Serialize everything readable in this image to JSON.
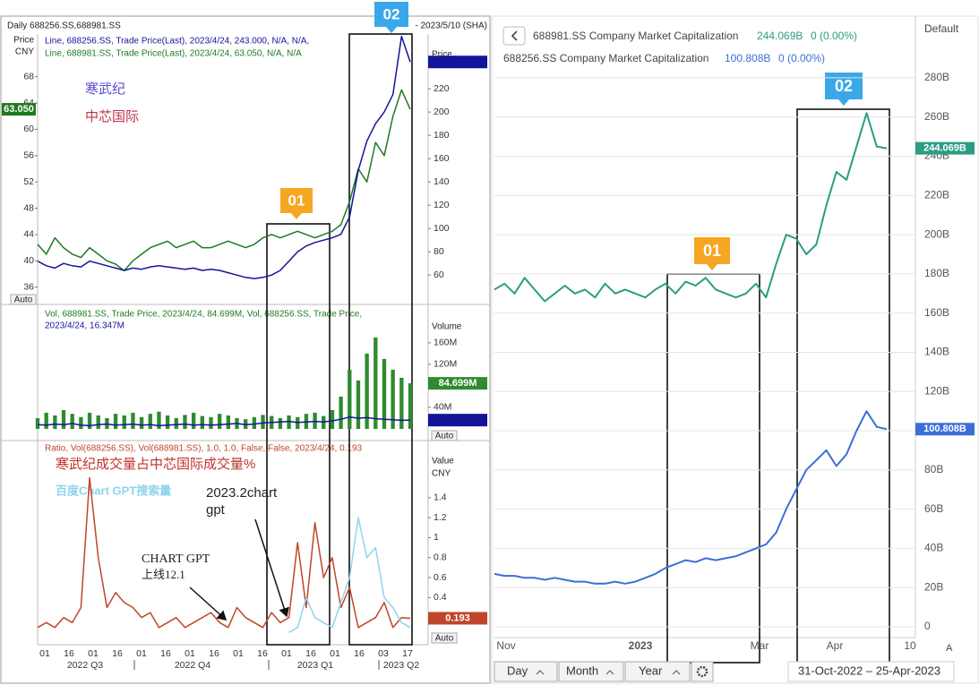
{
  "chart_data": [
    {
      "type": "line",
      "title": "Daily 688256.SS,688981.SS",
      "subtitle": "- 2023/5/10 (SHA)",
      "ylabel": [
        "Price",
        "CNY"
      ],
      "y2label": "Price",
      "yaxis_side": "left",
      "auto_button": "Auto",
      "info": [
        "Line, 688256.SS, Trade Price(Last), 2023/4/24, 243.000, N/A, N/A,",
        "Line, 688981.SS, Trade Price(Last), 2023/4/24, 63.050, N/A, N/A"
      ],
      "badges": [
        "01",
        "02"
      ],
      "ylim": [
        35,
        74.5
      ],
      "yticks": [
        36,
        40,
        44,
        48,
        52,
        56,
        60,
        64,
        68
      ],
      "y2lim": [
        44,
        267
      ],
      "y2ticks": [
        60,
        80,
        100,
        120,
        140,
        160,
        180,
        200,
        220
      ],
      "series": [
        {
          "name": "中芯国际",
          "color": "#1f7a1f",
          "axis": "y",
          "tag": {
            "value": 63.05,
            "label": "63.050"
          },
          "values": [
            42.5,
            41,
            43.5,
            42,
            41,
            40.5,
            42,
            41,
            40,
            39.5,
            38.5,
            40,
            41,
            42,
            42.5,
            43,
            42,
            42.5,
            43,
            42,
            42,
            42.5,
            43,
            42.5,
            42,
            42.5,
            43.5,
            44,
            43.5,
            44,
            44.5,
            44,
            43.5,
            44,
            44.5,
            45.5,
            49,
            54,
            52,
            58,
            56,
            62,
            66,
            63.05
          ]
        },
        {
          "name": "寒武纪",
          "color": "#14149a",
          "axis": "y2",
          "tag": {
            "value": 243
          },
          "values": [
            72,
            68,
            66,
            70,
            68,
            67,
            72,
            70,
            68,
            66,
            64,
            66,
            65,
            67,
            68,
            67,
            66,
            65,
            66,
            64,
            65,
            64,
            62,
            60,
            58,
            57,
            58,
            60,
            64,
            72,
            80,
            85,
            88,
            90,
            92,
            95,
            110,
            150,
            175,
            190,
            200,
            215,
            265,
            243
          ]
        }
      ]
    },
    {
      "type": "bar",
      "ylabel": "Volume",
      "auto_button": "Auto",
      "info": [
        "Vol, 688981.SS, Trade Price, 2023/4/24, 84.699M, Vol, 688256.SS, Trade Price,",
        "2023/4/24, 16.347M"
      ],
      "ylim": [
        0,
        223
      ],
      "yticks": [
        {
          "value": 40,
          "label": "40M"
        },
        {
          "value": 80,
          "label": "80M"
        },
        {
          "value": 120,
          "label": "120M"
        },
        {
          "value": 160,
          "label": "160M"
        }
      ],
      "series": [
        {
          "color": "#2e8b2e",
          "style": "bar",
          "tag": {
            "value": 84.699,
            "label": "84.699M"
          },
          "values": [
            20,
            30,
            25,
            35,
            28,
            22,
            30,
            25,
            20,
            28,
            25,
            30,
            22,
            28,
            32,
            25,
            20,
            26,
            30,
            24,
            22,
            28,
            25,
            20,
            18,
            22,
            26,
            24,
            20,
            25,
            22,
            28,
            30,
            24,
            35,
            60,
            110,
            90,
            140,
            170,
            130,
            110,
            95,
            84.699
          ]
        },
        {
          "color": "#14149a",
          "style": "line",
          "tag": {
            "value": 16.347
          },
          "values": [
            8,
            7,
            9,
            8,
            10,
            7,
            6,
            8,
            9,
            7,
            8,
            9,
            7,
            8,
            6,
            7,
            8,
            9,
            7,
            8,
            7,
            8,
            9,
            10,
            8,
            9,
            11,
            12,
            13,
            14,
            12,
            13,
            14,
            13,
            15,
            18,
            22,
            20,
            21,
            19,
            18,
            17,
            16,
            16.347
          ]
        }
      ]
    },
    {
      "type": "line",
      "ylabel": [
        "Value",
        "CNY"
      ],
      "auto_button": "Auto",
      "info": [
        "Ratio, Vol(688256.SS), Vol(688981.SS), 1.0, 1.0, False, False, 2023/4/24, 0.193"
      ],
      "annotations": [
        "2023.2chart",
        "gpt",
        "CHART GPT",
        "上线12.1"
      ],
      "xtick_labels": [
        "01",
        "16",
        "01",
        "16",
        "01",
        "16",
        "01",
        "16",
        "01",
        "16",
        "01",
        "16",
        "01",
        "16",
        "03",
        "17"
      ],
      "period_labels": [
        "2022 Q3",
        "2022 Q4",
        "2023 Q1",
        "2023 Q2"
      ],
      "ylim": [
        0,
        1.9
      ],
      "yticks": [
        0.2,
        0.4,
        0.6,
        0.8,
        1,
        1.2,
        1.4
      ],
      "series": [
        {
          "name": "寒武纪成交量占中芯国际成交量%",
          "color": "#c0452a",
          "tag": {
            "value": 0.193,
            "label": "0.193"
          },
          "values": [
            0.1,
            0.15,
            0.1,
            0.2,
            0.15,
            0.3,
            1.6,
            0.8,
            0.3,
            0.45,
            0.35,
            0.3,
            0.2,
            0.25,
            0.1,
            0.15,
            0.2,
            0.1,
            0.15,
            0.2,
            0.25,
            0.15,
            0.1,
            0.3,
            0.2,
            0.15,
            0.1,
            0.25,
            0.15,
            0.2,
            0.95,
            0.3,
            1.15,
            0.6,
            0.8,
            0.3,
            0.5,
            0.1,
            0.15,
            0.2,
            0.35,
            0.1,
            0.2,
            0.193
          ]
        },
        {
          "name": "百度Chart GPT搜索量",
          "color": "#8fd3ec",
          "values": [
            null,
            null,
            null,
            null,
            null,
            null,
            null,
            null,
            null,
            null,
            null,
            null,
            null,
            null,
            null,
            null,
            null,
            null,
            null,
            null,
            null,
            null,
            null,
            null,
            null,
            null,
            null,
            null,
            null,
            0.05,
            0.1,
            0.4,
            0.2,
            0.15,
            0.1,
            0.35,
            0.6,
            1.2,
            0.8,
            0.9,
            0.4,
            0.3,
            0.15,
            0.1
          ]
        }
      ]
    },
    {
      "type": "line",
      "menu": "Default",
      "grid": true,
      "badges": [
        "01",
        "02"
      ],
      "xtick_labels": [
        "Nov",
        "2023",
        "Mar",
        "Apr",
        "10"
      ],
      "corner_button": "A",
      "range_buttons": [
        "Day",
        "Month",
        "Year"
      ],
      "date_range": "31-Oct-2022 – 25-Apr-2023",
      "ylim": [
        0,
        306
      ],
      "yticks": [
        0,
        {
          "value": 20,
          "label": "20B"
        },
        {
          "value": 40,
          "label": "40B"
        },
        {
          "value": 60,
          "label": "60B"
        },
        {
          "value": 80,
          "label": "80B"
        },
        {
          "value": 100,
          "label": "100B"
        },
        {
          "value": 120,
          "label": "120B"
        },
        {
          "value": 140,
          "label": "140B"
        },
        {
          "value": 160,
          "label": "160B"
        },
        {
          "value": 180,
          "label": "180B"
        },
        {
          "value": 200,
          "label": "200B"
        },
        {
          "value": 220,
          "label": "220B"
        },
        {
          "value": 240,
          "label": "240B"
        },
        {
          "value": 260,
          "label": "260B"
        },
        {
          "value": 280,
          "label": "280B"
        }
      ],
      "series": [
        {
          "name": "688981.SS Company Market Capitalization",
          "color": "#2a9d84",
          "change": "0 (0.00%)",
          "tag": {
            "value": 244.069,
            "label": "244.069B"
          },
          "values": [
            172,
            175,
            170,
            178,
            172,
            166,
            170,
            174,
            170,
            172,
            168,
            175,
            170,
            172,
            170,
            168,
            172,
            175,
            170,
            176,
            174,
            178,
            172,
            170,
            168,
            170,
            175,
            168,
            185,
            200,
            198,
            190,
            195,
            215,
            232,
            228,
            245,
            262,
            245,
            244.069
          ]
        },
        {
          "name": "688256.SS Company Market Capitalization",
          "color": "#3b6fd6",
          "change": "0 (0.00%)",
          "tag": {
            "value": 100.808,
            "label": "100.808B"
          },
          "values": [
            27,
            26,
            26,
            25,
            25,
            24,
            25,
            24,
            23,
            23,
            22,
            22,
            23,
            22,
            23,
            25,
            27,
            30,
            32,
            34,
            33,
            35,
            34,
            35,
            36,
            38,
            40,
            42,
            48,
            60,
            70,
            80,
            85,
            90,
            82,
            88,
            100,
            110,
            102,
            100.808
          ]
        }
      ]
    }
  ]
}
